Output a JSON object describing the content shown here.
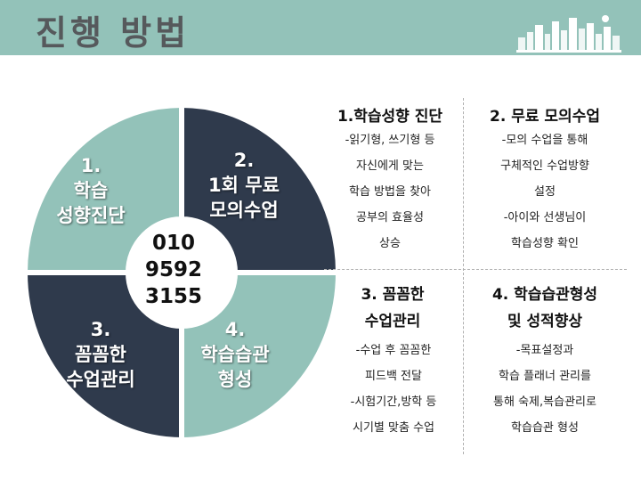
{
  "header": {
    "title": "진행 방법",
    "bg_color": "#93c2b9",
    "logo": "city-skyline-logo"
  },
  "wheel": {
    "colors": {
      "light": "#93c2b9",
      "dark": "#2f3a4c"
    },
    "quadrants": [
      {
        "lines": [
          "1.",
          "학습",
          "성향진단"
        ]
      },
      {
        "lines": [
          "2.",
          "1회 무료",
          "모의수업"
        ]
      },
      {
        "lines": [
          "3.",
          "꼼꼼한",
          "수업관리"
        ]
      },
      {
        "lines": [
          "4.",
          "학습습관",
          "형성"
        ]
      }
    ],
    "phone": [
      "010",
      "9592",
      "3155"
    ]
  },
  "sections": [
    {
      "title": "1.학습성향 진단",
      "lines": [
        "-읽기형, 쓰기형 등",
        "자신에게 맞는",
        "학습 방법을 찾아",
        "공부의 효율성",
        "상승"
      ]
    },
    {
      "title": "2. 무료 모의수업",
      "lines": [
        "-모의 수업을 통해",
        "구체적인 수업방향",
        "설정",
        "-아이와 선생님이",
        "학습성향 확인"
      ]
    },
    {
      "title_lines": [
        "3. 꼼꼼한",
        "수업관리"
      ],
      "lines": [
        "-수업 후 꼼꼼한",
        "피드백 전달",
        "-시험기간,방학 등",
        "시기별 맞춤 수업"
      ]
    },
    {
      "title_lines": [
        "4. 학습습관형성",
        "및 성적향상"
      ],
      "lines": [
        "-목표설정과",
        "학습 플래너 관리를",
        "통해 숙제,복습관리로",
        "학습습관 형성"
      ]
    }
  ]
}
